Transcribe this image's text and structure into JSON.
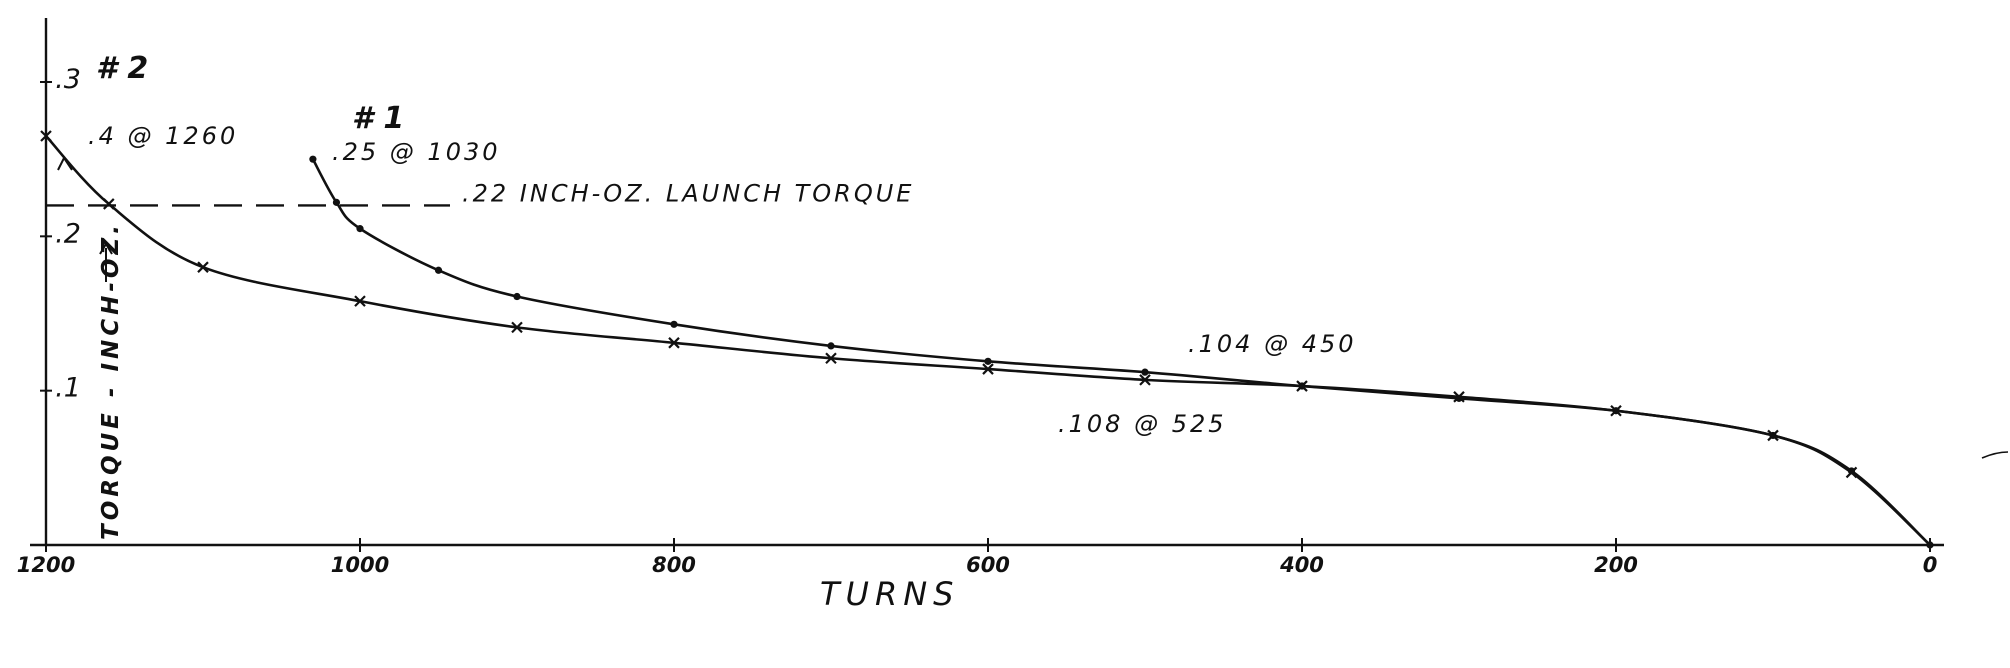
{
  "chart_data": {
    "type": "line",
    "xlabel": "TURNS",
    "ylabel": "TORQUE - INCH-OZ.",
    "x_direction": "reversed",
    "xlim": [
      1200,
      0
    ],
    "ylim": [
      0,
      0.3
    ],
    "x_ticks": [
      {
        "value": 1200,
        "label": "1200"
      },
      {
        "value": 1000,
        "label": "1000"
      },
      {
        "value": 800,
        "label": "800"
      },
      {
        "value": 600,
        "label": "600"
      },
      {
        "value": 400,
        "label": "400"
      },
      {
        "value": 200,
        "label": "200"
      },
      {
        "value": 0,
        "label": "0"
      }
    ],
    "y_ticks": [
      {
        "value": 0.1,
        "label": ".1"
      },
      {
        "value": 0.2,
        "label": ".2"
      },
      {
        "value": 0.3,
        "label": ".3"
      }
    ],
    "grid": false,
    "reference_line": {
      "y": 0.22,
      "label": ".22 INCH-OZ. LAUNCH TORQUE"
    },
    "series": [
      {
        "name": "# 1",
        "peak_label": ".25 @ 1030",
        "marker": "dot",
        "x": [
          1030,
          1015,
          1000,
          950,
          900,
          800,
          700,
          600,
          500,
          400,
          300,
          200,
          100,
          50,
          0
        ],
        "y": [
          0.25,
          0.222,
          0.205,
          0.178,
          0.161,
          0.143,
          0.129,
          0.119,
          0.112,
          0.103,
          0.095,
          0.087,
          0.071,
          0.048,
          0.0
        ]
      },
      {
        "name": "# 2",
        "peak_label": ".4 @ 1260",
        "marker": "x",
        "x": [
          1200,
          1160,
          1100,
          1000,
          900,
          800,
          700,
          600,
          500,
          400,
          300,
          200,
          100,
          50,
          0
        ],
        "y": [
          0.265,
          0.221,
          0.18,
          0.158,
          0.141,
          0.131,
          0.121,
          0.114,
          0.107,
          0.103,
          0.096,
          0.087,
          0.071,
          0.047,
          0.0
        ]
      }
    ],
    "annotations": [
      ".104 @ 450",
      ".108 @ 525"
    ]
  }
}
